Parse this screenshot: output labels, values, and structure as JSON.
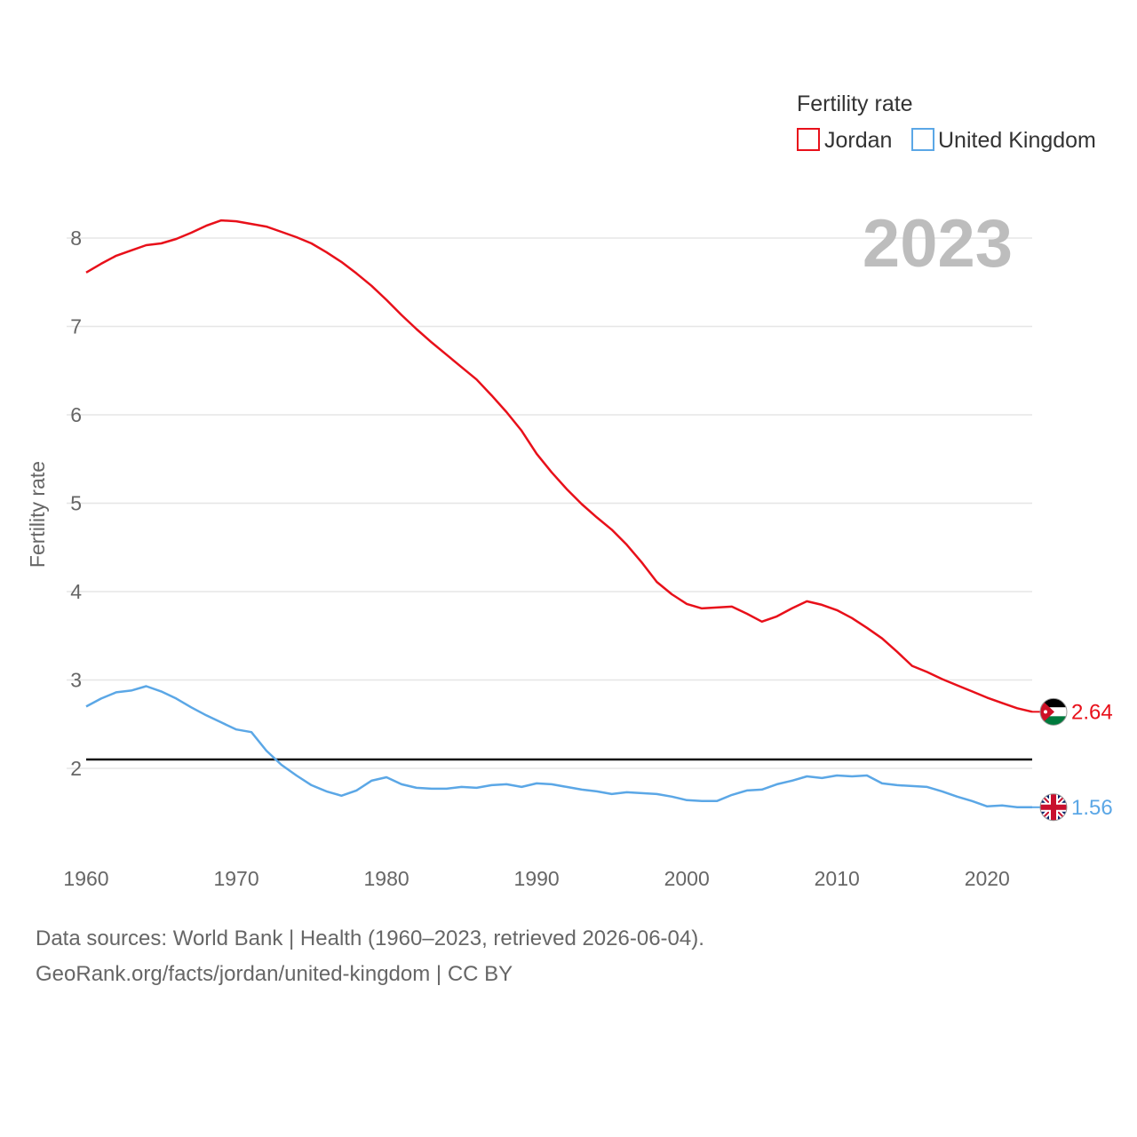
{
  "chart_data": {
    "type": "line",
    "legend_title": "Fertility rate",
    "ylabel": "Fertility rate",
    "year_label": "2023",
    "x_ticks": [
      1960,
      1970,
      1980,
      1990,
      2000,
      2010,
      2020
    ],
    "y_ticks": [
      2,
      3,
      4,
      5,
      6,
      7,
      8
    ],
    "xlim": [
      1960,
      2023
    ],
    "ylim": [
      1.0,
      8.4
    ],
    "reference_line": 2.1,
    "series": [
      {
        "name": "Jordan",
        "color": "#e8101a",
        "end_label": "2.64",
        "flag": "jordan-flag-icon",
        "start_year": 1960,
        "values": [
          7.61,
          7.71,
          7.8,
          7.86,
          7.92,
          7.94,
          7.99,
          8.06,
          8.14,
          8.2,
          8.19,
          8.16,
          8.13,
          8.07,
          8.01,
          7.94,
          7.84,
          7.73,
          7.6,
          7.46,
          7.3,
          7.13,
          6.97,
          6.82,
          6.68,
          6.54,
          6.4,
          6.22,
          6.03,
          5.82,
          5.56,
          5.35,
          5.16,
          4.99,
          4.84,
          4.7,
          4.53,
          4.33,
          4.11,
          3.97,
          3.86,
          3.81,
          3.82,
          3.83,
          3.75,
          3.66,
          3.72,
          3.81,
          3.89,
          3.85,
          3.79,
          3.7,
          3.59,
          3.47,
          3.32,
          3.16,
          3.09,
          3.01,
          2.94,
          2.87,
          2.8,
          2.74,
          2.68,
          2.64
        ]
      },
      {
        "name": "United Kingdom",
        "color": "#5ba7e6",
        "end_label": "1.56",
        "flag": "united-kingdom-flag-icon",
        "start_year": 1960,
        "values": [
          2.7,
          2.79,
          2.86,
          2.88,
          2.93,
          2.87,
          2.79,
          2.69,
          2.6,
          2.52,
          2.44,
          2.41,
          2.2,
          2.04,
          1.92,
          1.81,
          1.74,
          1.69,
          1.75,
          1.86,
          1.9,
          1.82,
          1.78,
          1.77,
          1.77,
          1.79,
          1.78,
          1.81,
          1.82,
          1.79,
          1.83,
          1.82,
          1.79,
          1.76,
          1.74,
          1.71,
          1.73,
          1.72,
          1.71,
          1.68,
          1.64,
          1.63,
          1.63,
          1.7,
          1.75,
          1.76,
          1.82,
          1.86,
          1.91,
          1.89,
          1.92,
          1.91,
          1.92,
          1.83,
          1.81,
          1.8,
          1.79,
          1.74,
          1.68,
          1.63,
          1.57,
          1.58,
          1.56,
          1.56
        ]
      }
    ]
  },
  "footer": {
    "line1": "Data sources: World Bank | Health (1960–2023, retrieved 2026-06-04).",
    "line2": "GeoRank.org/facts/jordan/united-kingdom | CC BY"
  }
}
